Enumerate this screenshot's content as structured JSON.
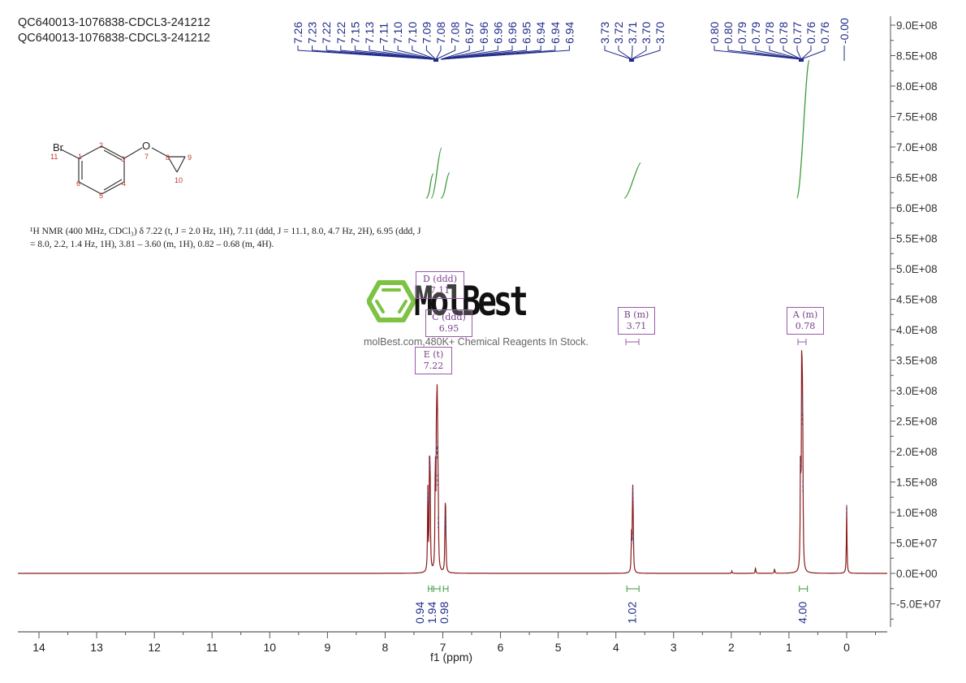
{
  "sample": {
    "title_line1": "QC640013-1076838-CDCL3-241212",
    "title_line2": "QC640013-1076838-CDCL3-241212"
  },
  "structure": {
    "name": "1-bromo-3-(cyclopropyloxy)benzene",
    "atoms": {
      "Br": "Br",
      "O": "O"
    },
    "numbering": [
      "1",
      "2",
      "3",
      "4",
      "5",
      "6",
      "7",
      "8",
      "9",
      "10",
      "11"
    ]
  },
  "nmr_description": {
    "line1": "¹H NMR (400 MHz, CDCl₃) δ 7.22 (t, J = 2.0 Hz, 1H), 7.11 (ddd, J = 11.1, 8.0, 4.7 Hz, 2H), 6.95 (ddd, J",
    "line2": "= 8.0, 2.2, 1.4 Hz, 1H), 3.81 – 3.60 (m, 1H), 0.82 – 0.68 (m, 4H)."
  },
  "watermark": {
    "brand": "MolBest",
    "tagline": "molBest.com,480K+ Chemical Reagents In Stock.",
    "accent_color": "#7dc242"
  },
  "multiplets": [
    {
      "id": "D",
      "type": "ddd",
      "shift": "7.11"
    },
    {
      "id": "C",
      "type": "ddd",
      "shift": "6.95"
    },
    {
      "id": "E",
      "type": "t",
      "shift": "7.22"
    },
    {
      "id": "B",
      "type": "m",
      "shift": "3.71"
    },
    {
      "id": "A",
      "type": "m",
      "shift": "0.78"
    }
  ],
  "colors": {
    "spectrum": "#8b1a1a",
    "peak_labels": "#1f2a8a",
    "integral": "#3a9a3a",
    "multiplet_box": "#9a5aa8",
    "axis": "#555555"
  },
  "chart_data": {
    "type": "line",
    "title": "QC640013-1076838-CDCL3-241212",
    "xlabel": "f1 (ppm)",
    "ylabel": "",
    "xlim": [
      14.3,
      -0.7
    ],
    "ylim": [
      -85000000.0,
      920000000.0
    ],
    "x_ticks": [
      "14",
      "13",
      "12",
      "11",
      "10",
      "9",
      "8",
      "7",
      "6",
      "5",
      "4",
      "3",
      "2",
      "1",
      "0"
    ],
    "y_ticks": [
      "9.0E+08",
      "8.5E+08",
      "8.0E+08",
      "7.5E+08",
      "7.0E+08",
      "6.5E+08",
      "6.0E+08",
      "5.5E+08",
      "5.0E+08",
      "4.5E+08",
      "4.0E+08",
      "3.5E+08",
      "3.0E+08",
      "2.5E+08",
      "2.0E+08",
      "1.5E+08",
      "1.0E+08",
      "5.0E+07",
      "0.0E+00",
      "-5.0E+07"
    ],
    "grid": false,
    "peak_labels_groups": [
      [
        "7.26",
        "7.23",
        "7.22",
        "7.22",
        "7.15",
        "7.13",
        "7.11",
        "7.10",
        "7.10",
        "7.09",
        "7.08",
        "7.08",
        "6.97",
        "6.96",
        "6.96",
        "6.96",
        "6.95",
        "6.94",
        "6.94",
        "6.94"
      ],
      [
        "3.73",
        "3.72",
        "3.71",
        "3.70",
        "3.70"
      ],
      [
        "0.80",
        "0.80",
        "0.79",
        "0.79",
        "0.78",
        "0.78",
        "0.77",
        "0.76",
        "0.76",
        "-0.00"
      ]
    ],
    "peaks": [
      {
        "ppm": 7.26,
        "height": 135000000.0
      },
      {
        "ppm": 7.23,
        "height": 185000000.0
      },
      {
        "ppm": 7.22,
        "height": 125000000.0
      },
      {
        "ppm": 7.13,
        "height": 190000000.0
      },
      {
        "ppm": 7.11,
        "height": 215000000.0
      },
      {
        "ppm": 7.1,
        "height": 205000000.0
      },
      {
        "ppm": 7.09,
        "height": 160000000.0
      },
      {
        "ppm": 7.08,
        "height": 90000000.0
      },
      {
        "ppm": 6.96,
        "height": 95000000.0
      },
      {
        "ppm": 6.95,
        "height": 80000000.0
      },
      {
        "ppm": 3.73,
        "height": 60000000.0
      },
      {
        "ppm": 3.71,
        "height": 135000000.0
      },
      {
        "ppm": 3.7,
        "height": 65000000.0
      },
      {
        "ppm": 1.99,
        "height": 4000000.0
      },
      {
        "ppm": 1.58,
        "height": 10000000.0
      },
      {
        "ppm": 1.25,
        "height": 8000000.0
      },
      {
        "ppm": 0.8,
        "height": 180000000.0
      },
      {
        "ppm": 0.78,
        "height": 285000000.0
      },
      {
        "ppm": 0.77,
        "height": 260000000.0
      },
      {
        "ppm": 0.76,
        "height": 150000000.0
      },
      {
        "ppm": 0.0,
        "height": 110000000.0
      }
    ],
    "integrals": [
      {
        "range": [
          7.25,
          7.19
        ],
        "value": "0.94"
      },
      {
        "range": [
          7.16,
          7.05
        ],
        "value": "1.94"
      },
      {
        "range": [
          6.99,
          6.91
        ],
        "value": "0.98"
      },
      {
        "range": [
          3.81,
          3.6
        ],
        "value": "1.02"
      },
      {
        "range": [
          0.82,
          0.68
        ],
        "value": "4.00"
      }
    ]
  }
}
